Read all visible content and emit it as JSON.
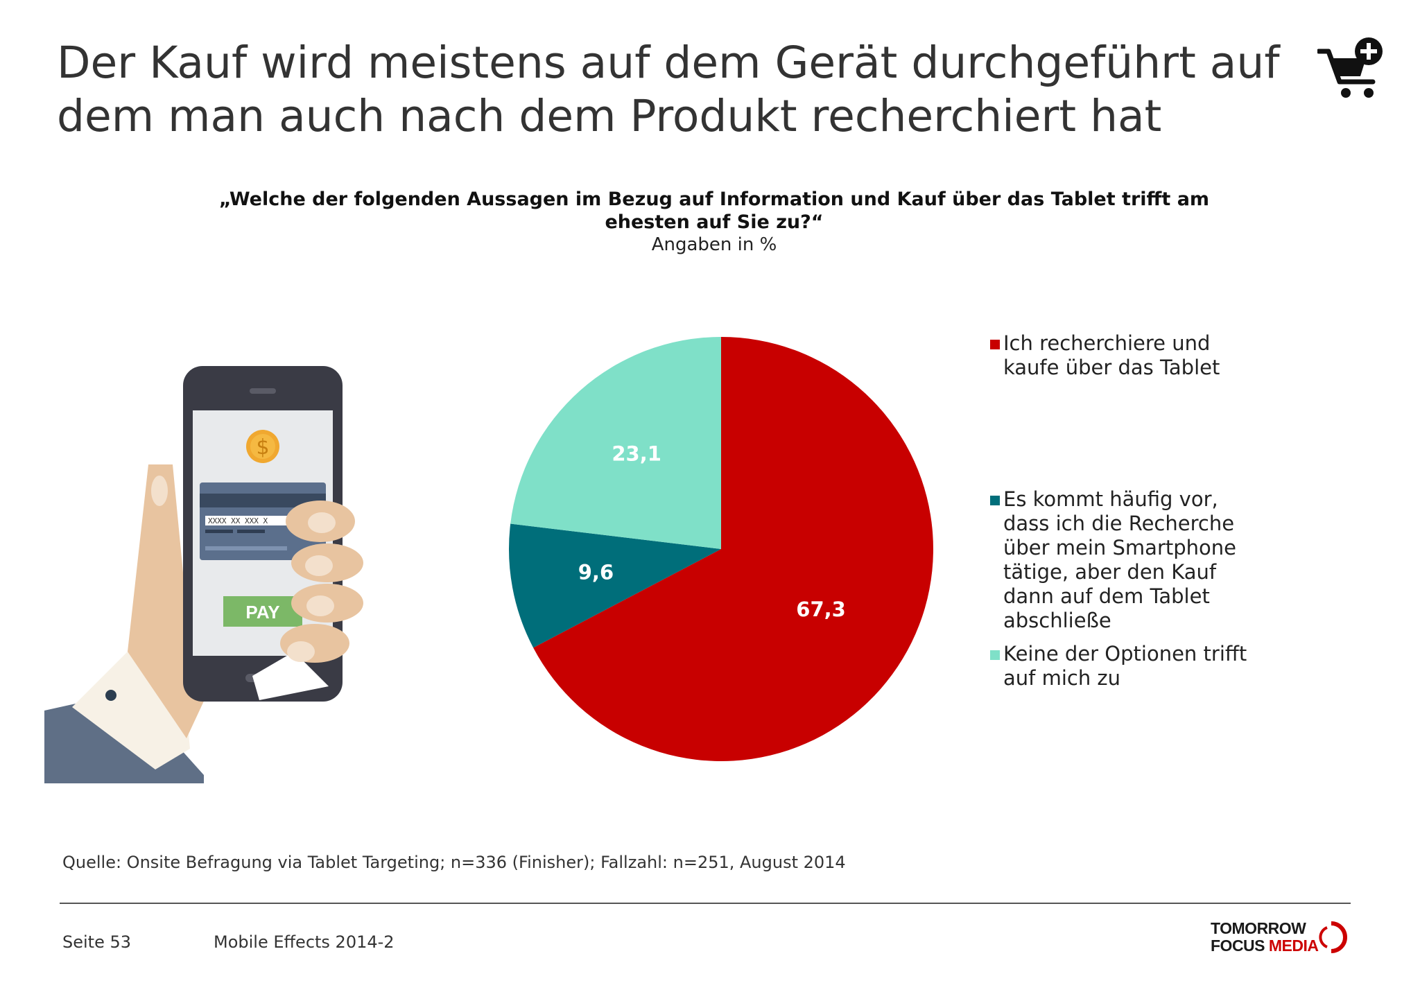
{
  "title": {
    "line1": "Der Kauf wird meistens auf dem Gerät durchgeführt auf",
    "line2": "dem man auch nach dem Produkt recherchiert hat"
  },
  "question": {
    "line1": "„Welche der folgenden Aussagen im Bezug auf Information und Kauf über das Tablet trifft am",
    "line2": "ehesten auf Sie zu?“",
    "units": "Angaben in %"
  },
  "illustration": {
    "card_number": "XXXX XX XXX X",
    "pay_label": "PAY",
    "coin_symbol": "$"
  },
  "chart_data": {
    "type": "pie",
    "title": "",
    "start_angle_deg": 0,
    "direction": "clockwise",
    "slices": [
      {
        "name": "Ich recherchiere und kaufe über das Tablet",
        "value": 67.3,
        "label": "67,3",
        "color": "#c80000"
      },
      {
        "name": "Es kommt häufig vor, dass ich die Recherche über mein Smartphone tätige, aber den Kauf dann auf dem Tablet abschließe",
        "value": 9.6,
        "label": "9,6",
        "color": "#006e7a"
      },
      {
        "name": "Keine der Optionen trifft auf mich zu",
        "value": 23.1,
        "label": "23,1",
        "color": "#7fe0c8"
      }
    ],
    "legend_position": "right"
  },
  "legend": [
    {
      "lines": [
        "Ich recherchiere und",
        "kaufe über das Tablet"
      ],
      "color": "#c80000"
    },
    {
      "lines": [
        "Es kommt häufig vor,",
        "dass ich die Recherche",
        "über mein Smartphone",
        "tätige, aber den Kauf",
        "dann auf dem Tablet",
        "abschließe"
      ],
      "color": "#006e7a"
    },
    {
      "lines": [
        "Keine der Optionen trifft",
        "auf mich zu"
      ],
      "color": "#7fe0c8"
    }
  ],
  "footer": {
    "source": "Quelle: Onsite Befragung via Tablet Targeting; n=336 (Finisher); Fallzahl: n=251, August 2014",
    "page": "Seite 53",
    "study": "Mobile Effects 2014-2",
    "logo_line1": "TOMORROW",
    "logo_line2a": "FOCUS",
    "logo_line2b": "MEDIA"
  },
  "icons": {
    "cart": "shopping-cart-add-icon"
  }
}
